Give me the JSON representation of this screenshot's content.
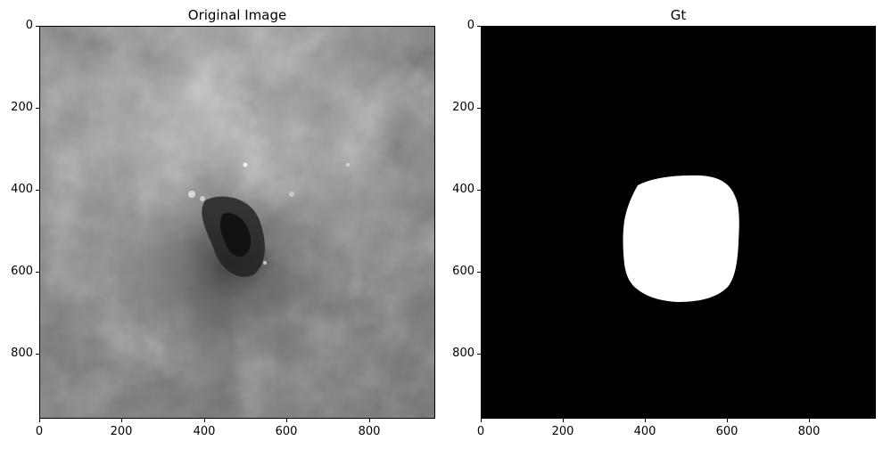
{
  "figure": {
    "panels": [
      {
        "title": "Original Image",
        "image_kind": "dermoscopy-grayscale",
        "x_ticks": [
          "0",
          "200",
          "400",
          "600",
          "800"
        ],
        "y_ticks": [
          "0",
          "200",
          "400",
          "600",
          "800"
        ],
        "x_range": [
          0,
          960
        ],
        "y_range": [
          0,
          960
        ]
      },
      {
        "title": "Gt",
        "image_kind": "segmentation-mask",
        "x_ticks": [
          "0",
          "200",
          "400",
          "600",
          "800"
        ],
        "y_ticks": [
          "0",
          "200",
          "400",
          "600",
          "800"
        ],
        "x_range": [
          0,
          960
        ],
        "y_range": [
          0,
          960
        ],
        "colors": {
          "background": "#000000",
          "mask": "#ffffff"
        }
      }
    ]
  }
}
